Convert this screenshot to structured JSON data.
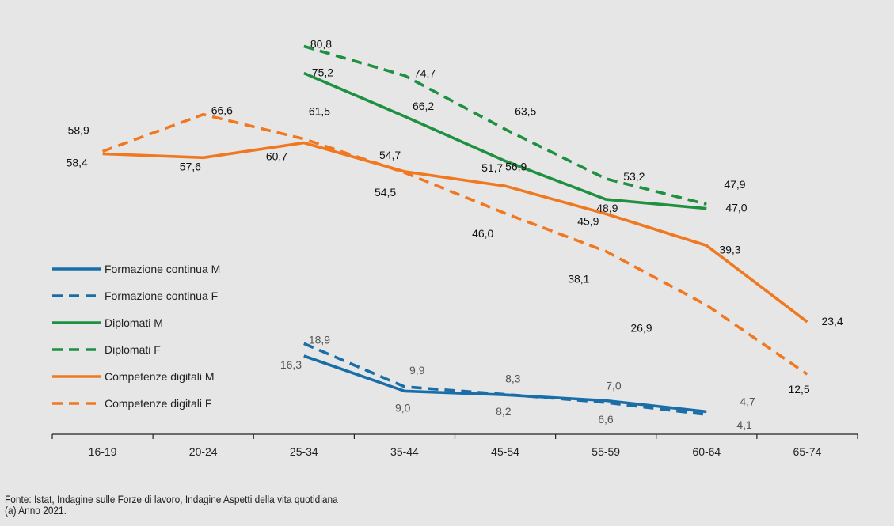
{
  "chart_data": {
    "type": "line",
    "categories": [
      "16-19",
      "20-24",
      "25-34",
      "35-44",
      "45-54",
      "55-59",
      "60-64",
      "65-74"
    ],
    "ylim": [
      0,
      85
    ],
    "grid": false,
    "legend_position": "middle-left",
    "series": [
      {
        "name": "Formazione continua M",
        "color": "#1a6ea8",
        "dash": false,
        "values": [
          null,
          null,
          16.3,
          9.0,
          8.2,
          7.0,
          4.7,
          null
        ],
        "labels": [
          null,
          null,
          "16,3",
          "9,0",
          "8,2",
          "7,0",
          "4,7",
          null
        ],
        "label_color": "#555555"
      },
      {
        "name": "Formazione continua F",
        "color": "#1a6ea8",
        "dash": true,
        "values": [
          null,
          null,
          18.9,
          9.9,
          8.3,
          6.6,
          4.1,
          null
        ],
        "labels": [
          null,
          null,
          "18,9",
          "9,9",
          "8,3",
          "6,6",
          "4,1",
          null
        ],
        "label_color": "#555555"
      },
      {
        "name": "Diplomati M",
        "color": "#1e9040",
        "dash": false,
        "values": [
          null,
          null,
          75.2,
          66.2,
          56.9,
          48.9,
          47.0,
          null
        ],
        "labels": [
          null,
          null,
          "75,2",
          "66,2",
          "56,9",
          "48,9",
          "47,0",
          null
        ],
        "label_color": "#111111"
      },
      {
        "name": "Diplomati F",
        "color": "#1e9040",
        "dash": true,
        "values": [
          null,
          null,
          80.8,
          74.7,
          63.5,
          53.2,
          47.9,
          null
        ],
        "labels": [
          null,
          null,
          "80,8",
          "74,7",
          "63,5",
          "53,2",
          "47,9",
          null
        ],
        "label_color": "#111111"
      },
      {
        "name": "Competenze digitali M",
        "color": "#f07820",
        "dash": false,
        "values": [
          58.4,
          57.6,
          60.7,
          54.7,
          51.7,
          45.9,
          39.3,
          23.4
        ],
        "labels": [
          "58,4",
          "57,6",
          "60,7",
          "54,7",
          "51,7",
          "45,9",
          "39,3",
          "23,4"
        ],
        "label_color": "#111111"
      },
      {
        "name": "Competenze digitali F",
        "color": "#f07820",
        "dash": true,
        "values": [
          58.9,
          66.6,
          61.5,
          54.5,
          46.0,
          38.1,
          26.9,
          12.5
        ],
        "labels": [
          "58,9",
          "66,6",
          "61,5",
          "54,5",
          "46,0",
          "38,1",
          "26,9",
          "12,5"
        ],
        "label_color": "#111111"
      }
    ]
  },
  "source_lines": [
    "Fonte: Istat, Indagine sulle Forze di lavoro, Indagine Aspetti della vita quotidiana",
    "(a) Anno 2021."
  ]
}
